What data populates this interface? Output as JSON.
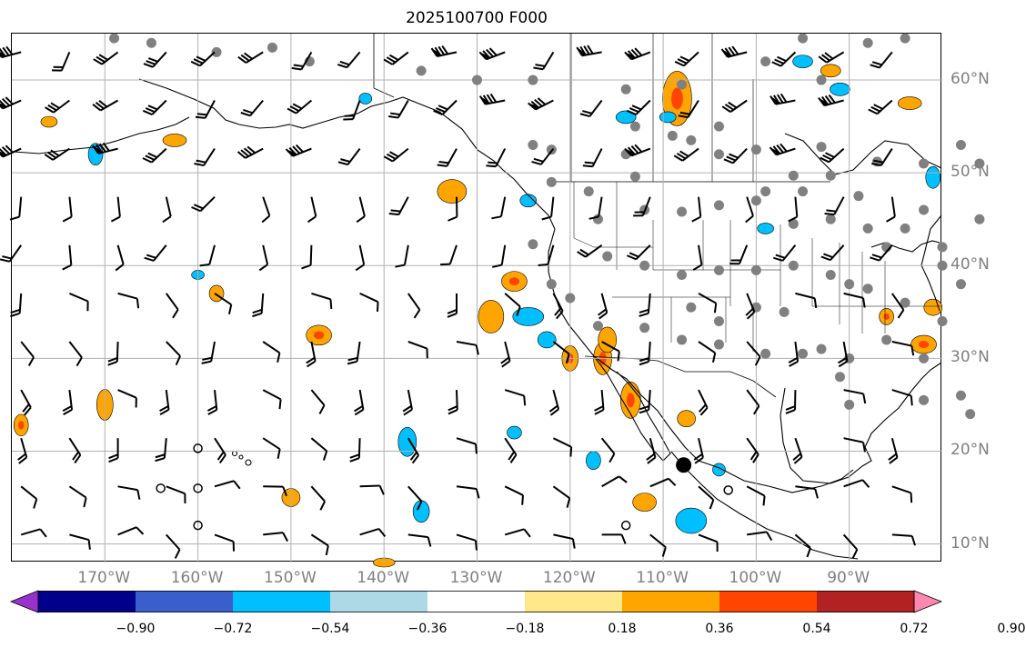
{
  "figure": {
    "title": "2025100700 F000",
    "lon_labels": [
      "170°W",
      "160°W",
      "150°W",
      "140°W",
      "130°W",
      "120°W",
      "110°W",
      "100°W",
      "90°W"
    ],
    "lon_values": [
      -170,
      -160,
      -150,
      -140,
      -130,
      -120,
      -110,
      -100,
      -90
    ],
    "lat_labels": [
      "60°N",
      "50°N",
      "40°N",
      "30°N",
      "20°N",
      "10°N"
    ],
    "lat_values": [
      60,
      50,
      40,
      30,
      20,
      10
    ],
    "extent": {
      "lon_min": -180,
      "lon_max": -80,
      "lat_min": 8,
      "lat_max": 65
    }
  },
  "colorbar": {
    "ticks": [
      "−0.90",
      "−0.72",
      "−0.54",
      "−0.36",
      "−0.18",
      "0.18",
      "0.36",
      "0.54",
      "0.72",
      "0.90"
    ],
    "colors": [
      "#9932cc",
      "#00008b",
      "#3a5fcd",
      "#00bfff",
      "#add8e6",
      "#ffffff",
      "#ffe88a",
      "#ffa500",
      "#ff4500",
      "#b22222",
      "#ff88b0"
    ]
  },
  "map": {
    "gridline_color": "#b0b0b0",
    "positive_fill": "#ffa500",
    "positive_core": "#ff4500",
    "negative_fill": "#00bfff",
    "station_color": "#808080",
    "positive_areas": [
      {
        "lon": -132.7,
        "lat": 48.0,
        "rx": 16,
        "ry": 13,
        "core": false
      },
      {
        "lon": -126.0,
        "lat": 38.3,
        "rx": 14,
        "ry": 11,
        "core": true
      },
      {
        "lon": -128.5,
        "lat": 34.5,
        "rx": 14,
        "ry": 18,
        "core": false
      },
      {
        "lon": -116.5,
        "lat": 30.0,
        "rx": 10,
        "ry": 18,
        "core": true
      },
      {
        "lon": -113.5,
        "lat": 25.5,
        "rx": 11,
        "ry": 20,
        "core": true
      },
      {
        "lon": -107.5,
        "lat": 23.5,
        "rx": 10,
        "ry": 9,
        "core": false
      },
      {
        "lon": -108.5,
        "lat": 58.0,
        "rx": 16,
        "ry": 30,
        "core": true
      },
      {
        "lon": -92.0,
        "lat": 61.0,
        "rx": 11,
        "ry": 7,
        "core": false
      },
      {
        "lon": -83.5,
        "lat": 57.5,
        "rx": 13,
        "ry": 7,
        "core": false
      },
      {
        "lon": -147.0,
        "lat": 32.5,
        "rx": 14,
        "ry": 11,
        "core": true
      },
      {
        "lon": -170.0,
        "lat": 25.0,
        "rx": 9,
        "ry": 17,
        "core": false
      },
      {
        "lon": -179.0,
        "lat": 22.8,
        "rx": 8,
        "ry": 12,
        "core": true
      },
      {
        "lon": -112.0,
        "lat": 14.5,
        "rx": 13,
        "ry": 10,
        "core": false
      },
      {
        "lon": -150.0,
        "lat": 15.0,
        "rx": 10,
        "ry": 10,
        "core": false
      },
      {
        "lon": -116.0,
        "lat": 32.0,
        "rx": 10,
        "ry": 14,
        "core": false
      },
      {
        "lon": -82.0,
        "lat": 31.5,
        "rx": 14,
        "ry": 10,
        "core": true
      },
      {
        "lon": -86.0,
        "lat": 34.5,
        "rx": 8,
        "ry": 9,
        "core": true
      },
      {
        "lon": -81.0,
        "lat": 35.5,
        "rx": 10,
        "ry": 9,
        "core": false
      },
      {
        "lon": -158.0,
        "lat": 37.0,
        "rx": 8,
        "ry": 9,
        "core": false
      },
      {
        "lon": -140.0,
        "lat": 8.0,
        "rx": 12,
        "ry": 5,
        "core": false
      },
      {
        "lon": -176.0,
        "lat": 55.5,
        "rx": 9,
        "ry": 6,
        "core": false
      },
      {
        "lon": -162.5,
        "lat": 53.5,
        "rx": 13,
        "ry": 7,
        "core": false
      },
      {
        "lon": -120.0,
        "lat": 30.0,
        "rx": 9,
        "ry": 14,
        "core": true
      }
    ],
    "negative_areas": [
      {
        "lon": -124.5,
        "lat": 34.5,
        "rx": 17,
        "ry": 10
      },
      {
        "lon": -171.0,
        "lat": 52.0,
        "rx": 8,
        "ry": 12
      },
      {
        "lon": -137.5,
        "lat": 21.0,
        "rx": 10,
        "ry": 16
      },
      {
        "lon": -107.0,
        "lat": 12.5,
        "rx": 17,
        "ry": 14
      },
      {
        "lon": -114.0,
        "lat": 56.0,
        "rx": 11,
        "ry": 7
      },
      {
        "lon": -99.0,
        "lat": 44.0,
        "rx": 9,
        "ry": 6
      },
      {
        "lon": -91.0,
        "lat": 59.0,
        "rx": 11,
        "ry": 7
      },
      {
        "lon": -81.0,
        "lat": 49.5,
        "rx": 8,
        "ry": 12
      },
      {
        "lon": -109.5,
        "lat": 56.0,
        "rx": 9,
        "ry": 6
      },
      {
        "lon": -117.5,
        "lat": 19.0,
        "rx": 8,
        "ry": 10
      },
      {
        "lon": -124.5,
        "lat": 47.0,
        "rx": 9,
        "ry": 7
      },
      {
        "lon": -136.0,
        "lat": 13.5,
        "rx": 9,
        "ry": 12
      },
      {
        "lon": -160.0,
        "lat": 39.0,
        "rx": 7,
        "ry": 5
      },
      {
        "lon": -142.0,
        "lat": 58.0,
        "rx": 7,
        "ry": 6
      },
      {
        "lon": -126.0,
        "lat": 22.0,
        "rx": 8,
        "ry": 7
      },
      {
        "lon": -104.0,
        "lat": 18.0,
        "rx": 7,
        "ry": 7
      },
      {
        "lon": -95.0,
        "lat": 62.0,
        "rx": 11,
        "ry": 7
      },
      {
        "lon": -122.5,
        "lat": 32.0,
        "rx": 10,
        "ry": 9
      }
    ],
    "stations": [
      [
        -169,
        64.5
      ],
      [
        -165,
        64
      ],
      [
        -158,
        63
      ],
      [
        -152,
        63.5
      ],
      [
        -148,
        62
      ],
      [
        -136,
        61
      ],
      [
        -130,
        60
      ],
      [
        -124,
        60
      ],
      [
        -114,
        59
      ],
      [
        -108,
        59.5
      ],
      [
        -99,
        62
      ],
      [
        -95,
        64.5
      ],
      [
        -88,
        64
      ],
      [
        -84,
        64.5
      ],
      [
        -93,
        60
      ],
      [
        -113,
        55
      ],
      [
        -109,
        54
      ],
      [
        -104,
        52
      ],
      [
        -100,
        52.5
      ],
      [
        -93,
        52.8
      ],
      [
        -87,
        51.2
      ],
      [
        -107,
        53.5
      ],
      [
        -114,
        52
      ],
      [
        -122,
        49
      ],
      [
        -118,
        48
      ],
      [
        -113,
        49.6
      ],
      [
        -122,
        52.5
      ],
      [
        -124,
        53
      ],
      [
        -99,
        48
      ],
      [
        -95,
        48
      ],
      [
        -92,
        49.7
      ],
      [
        -96,
        49.7
      ],
      [
        -89,
        47.5
      ],
      [
        -82,
        51
      ],
      [
        -78,
        53
      ],
      [
        -76,
        51
      ],
      [
        -117,
        45
      ],
      [
        -112,
        46
      ],
      [
        -108,
        45.8
      ],
      [
        -104,
        46.5
      ],
      [
        -100,
        47
      ],
      [
        -96,
        44.5
      ],
      [
        -92,
        45
      ],
      [
        -88,
        44
      ],
      [
        -84,
        44
      ],
      [
        -80,
        42
      ],
      [
        -116,
        41
      ],
      [
        -112,
        40
      ],
      [
        -108,
        39
      ],
      [
        -104,
        39.5
      ],
      [
        -100,
        39.5
      ],
      [
        -96,
        40
      ],
      [
        -92,
        39
      ],
      [
        -88,
        37.5
      ],
      [
        -84,
        36
      ],
      [
        -124,
        42.3
      ],
      [
        -122,
        38
      ],
      [
        -120,
        36.5
      ],
      [
        -117,
        33.5
      ],
      [
        -112,
        33.3
      ],
      [
        -107,
        35.5
      ],
      [
        -104,
        34
      ],
      [
        -100,
        35.5
      ],
      [
        -97,
        35
      ],
      [
        -95,
        30.5
      ],
      [
        -93,
        31
      ],
      [
        -90,
        30
      ],
      [
        -86,
        32
      ],
      [
        -82,
        30
      ],
      [
        -80,
        34
      ],
      [
        -78,
        38
      ],
      [
        -80,
        40
      ],
      [
        -91,
        28
      ],
      [
        -108,
        32
      ],
      [
        -104,
        31.5
      ],
      [
        -99,
        30.5
      ],
      [
        -90,
        25
      ],
      [
        -82,
        25.5
      ],
      [
        -77,
        24
      ],
      [
        -78,
        26
      ],
      [
        -90,
        38
      ],
      [
        -76,
        45
      ],
      [
        -86,
        42
      ],
      [
        -82,
        46
      ],
      [
        -104,
        55
      ]
    ],
    "calm_circles": [
      [
        -160,
        20.3
      ],
      [
        -164,
        16
      ],
      [
        -160,
        16
      ],
      [
        -160,
        12
      ],
      [
        -114,
        12
      ],
      [
        -103,
        15.8
      ]
    ],
    "storm_marker": {
      "lon": -107.8,
      "lat": 18.5
    }
  }
}
